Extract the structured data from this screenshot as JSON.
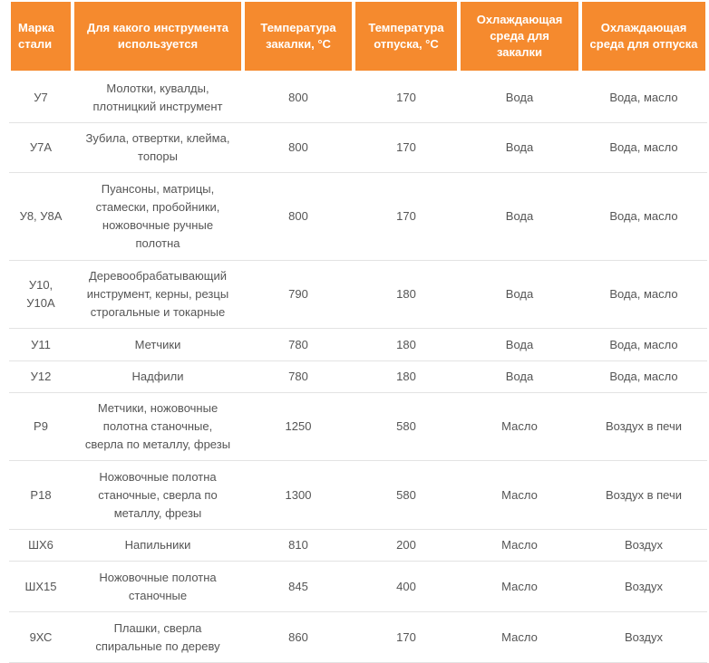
{
  "table": {
    "header": [
      "Марка стали",
      "Для какого инструмента используется",
      "Температура закалки, °С",
      "Температура отпуска, °С",
      "Охлаждающая среда для закалки",
      "Охлаждающая среда для отпуска"
    ],
    "rows": [
      [
        "У7",
        "Молотки, кувалды, плотницкий инструмент",
        800,
        170,
        "Вода",
        "Вода, масло"
      ],
      [
        "У7А",
        "Зубила, отвертки, клейма, топоры",
        800,
        170,
        "Вода",
        "Вода, масло"
      ],
      [
        "У8, У8А",
        "Пуансоны, матрицы, стамески, пробойники, ножовочные ручные полотна",
        800,
        170,
        "Вода",
        "Вода, масло"
      ],
      [
        "У10, У10А",
        "Деревообрабатывающий инструмент, керны, резцы строгальные и токарные",
        790,
        180,
        "Вода",
        "Вода, масло"
      ],
      [
        "У11",
        "Метчики",
        780,
        180,
        "Вода",
        "Вода, масло"
      ],
      [
        "У12",
        "Надфили",
        780,
        180,
        "Вода",
        "Вода, масло"
      ],
      [
        "Р9",
        "Метчики, ножовочные полотна станочные, сверла по металлу, фрезы",
        1250,
        580,
        "Масло",
        "Воздух в печи"
      ],
      [
        "Р18",
        "Ножовочные полотна станочные, сверла по металлу, фрезы",
        1300,
        580,
        "Масло",
        "Воздух в печи"
      ],
      [
        "ШХ6",
        "Напильники",
        810,
        200,
        "Масло",
        "Воздух"
      ],
      [
        "ШХ15",
        "Ножовочные полотна станочные",
        845,
        400,
        "Масло",
        "Воздух"
      ],
      [
        "9ХС",
        "Плашки, сверла спиральные по дереву",
        860,
        170,
        "Масло",
        "Воздух"
      ]
    ]
  }
}
